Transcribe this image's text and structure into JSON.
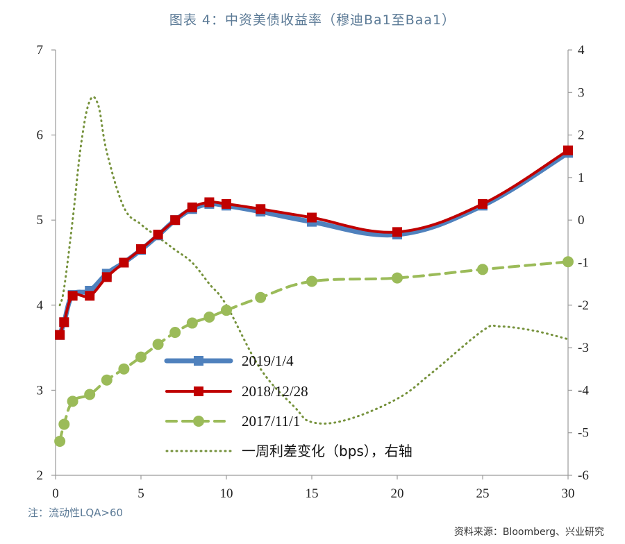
{
  "title": "图表 4：中资美债收益率（穆迪Ba1至Baa1）",
  "note": "注：流动性LQA>60",
  "source": "资料来源：Bloomberg、兴业研究",
  "chart_data": {
    "type": "line",
    "xlim": [
      0,
      30
    ],
    "ylim": [
      2,
      7
    ],
    "y2lim": [
      -6,
      4
    ],
    "xticks": [
      0,
      5,
      10,
      15,
      20,
      25,
      30
    ],
    "yticks": [
      2,
      3,
      4,
      5,
      6,
      7
    ],
    "y2ticks": [
      -6,
      -5,
      -4,
      -3,
      -2,
      -1,
      0,
      1,
      2,
      3,
      4
    ],
    "legend_position": "center-left",
    "series": [
      {
        "name": "2019/1/4",
        "axis": "left",
        "color": "#4f81bd",
        "marker": "square",
        "x": [
          0.25,
          0.5,
          1,
          2,
          3,
          4,
          5,
          6,
          7,
          8,
          9,
          10,
          12,
          15,
          20,
          25,
          30
        ],
        "y": [
          3.65,
          3.8,
          4.12,
          4.17,
          4.37,
          4.5,
          4.65,
          4.82,
          5.0,
          5.13,
          5.19,
          5.17,
          5.1,
          4.98,
          4.83,
          5.17,
          5.79
        ]
      },
      {
        "name": "2018/12/28",
        "axis": "left",
        "color": "#c00000",
        "marker": "square",
        "x": [
          0.25,
          0.5,
          1,
          2,
          3,
          4,
          5,
          6,
          7,
          8,
          9,
          10,
          12,
          15,
          20,
          25,
          30
        ],
        "y": [
          3.65,
          3.8,
          4.11,
          4.11,
          4.33,
          4.5,
          4.66,
          4.83,
          5.0,
          5.15,
          5.21,
          5.19,
          5.13,
          5.03,
          4.86,
          5.19,
          5.82
        ]
      },
      {
        "name": "2017/11/1",
        "axis": "left",
        "color": "#9bbb59",
        "marker": "circle",
        "dashed": true,
        "x": [
          0.25,
          0.5,
          1,
          2,
          3,
          4,
          5,
          6,
          7,
          8,
          9,
          10,
          12,
          15,
          20,
          25,
          30
        ],
        "y": [
          2.4,
          2.6,
          2.87,
          2.95,
          3.12,
          3.25,
          3.39,
          3.54,
          3.68,
          3.79,
          3.86,
          3.94,
          4.09,
          4.28,
          4.32,
          4.42,
          4.51
        ]
      },
      {
        "name": "一周利差变化（bps），右轴",
        "axis": "right",
        "color": "#76923c",
        "marker": "none",
        "dotted": true,
        "x": [
          0.25,
          0.5,
          1,
          1.5,
          2,
          2.5,
          3,
          4,
          5,
          6,
          7,
          8,
          9,
          10,
          12,
          14,
          15,
          17,
          20,
          22,
          25,
          26,
          28,
          30
        ],
        "y": [
          -2.0,
          -1.6,
          0.0,
          1.8,
          2.8,
          2.7,
          1.6,
          0.3,
          -0.1,
          -0.4,
          -0.7,
          -1.0,
          -1.5,
          -2.0,
          -3.5,
          -4.4,
          -4.75,
          -4.7,
          -4.2,
          -3.6,
          -2.6,
          -2.5,
          -2.6,
          -2.8
        ]
      }
    ]
  }
}
